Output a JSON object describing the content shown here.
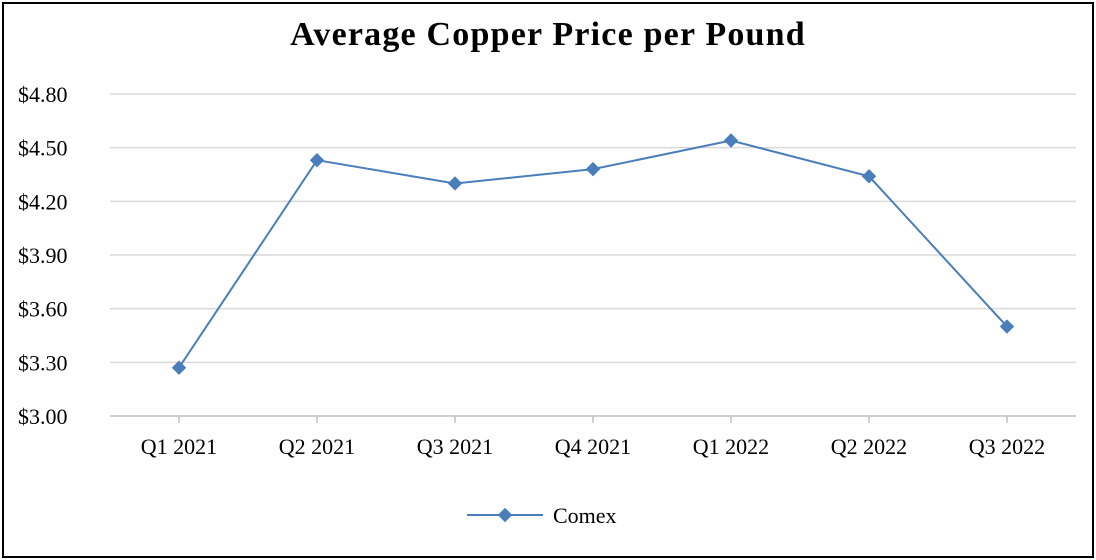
{
  "chart_data": {
    "type": "line",
    "title": "Average Copper Price per Pound",
    "xlabel": "",
    "ylabel": "",
    "categories": [
      "Q1 2021",
      "Q2 2021",
      "Q3 2021",
      "Q4 2021",
      "Q1 2022",
      "Q2 2022",
      "Q3 2022"
    ],
    "series": [
      {
        "name": "Comex",
        "values": [
          3.27,
          4.43,
          4.3,
          4.38,
          4.54,
          4.34,
          3.5
        ],
        "color": "#4a7ebb",
        "marker": "diamond"
      }
    ],
    "ylim": [
      3.0,
      4.8
    ],
    "y_ticks": [
      3.0,
      3.3,
      3.6,
      3.9,
      4.2,
      4.5,
      4.8
    ],
    "y_tick_labels": [
      "$3.00",
      "$3.30",
      "$3.60",
      "$3.90",
      "$4.20",
      "$4.50",
      "$4.80"
    ],
    "grid": true,
    "legend_position": "bottom",
    "colors": {
      "line": "#4a7ebb",
      "grid": "#d9d9d9",
      "axis": "#bfbfbf",
      "frame": "#000000"
    }
  }
}
